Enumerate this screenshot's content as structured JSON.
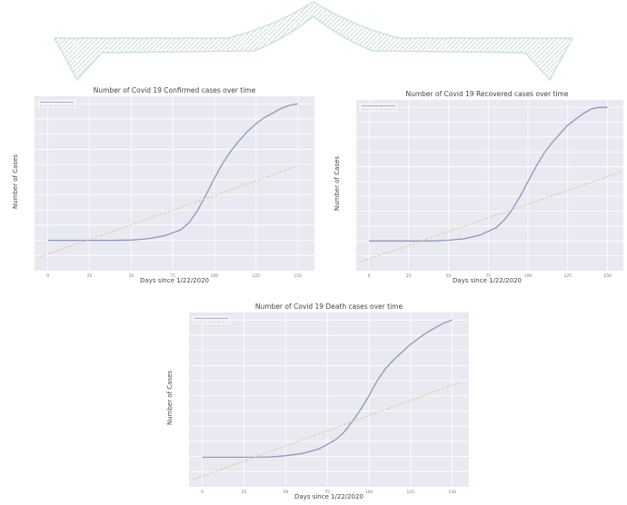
{
  "colors": {
    "plot_bg": "#e9e9f1",
    "grid": "#ffffff",
    "confirmed_line": "#8f96bf",
    "regression_line": "#e7c59a",
    "watermark": "#cfe2d8"
  },
  "chart_data": [
    {
      "type": "line",
      "title": "Number of Covid 19 Confirmed cases over time",
      "xlabel": "Days since 1/22/2020",
      "ylabel": "Number of Cases",
      "legend_position": "top-left",
      "grid": true,
      "xlim": [
        -8,
        160
      ],
      "ylim": [
        -1,
        10.5
      ],
      "x_ticks": [
        0,
        25,
        50,
        75,
        100,
        125,
        150
      ],
      "y_ticks": [
        0,
        1,
        2,
        3,
        4,
        5,
        6,
        7,
        8,
        9,
        10
      ],
      "x_tick_labels": [
        "0",
        "25",
        "50",
        "75",
        "100",
        "125",
        "150"
      ],
      "y_tick_labels": [
        "",
        "",
        "",
        "",
        "",
        "",
        "",
        "",
        "",
        "",
        ""
      ],
      "series": [
        {
          "role": "actual",
          "x": [
            0,
            10,
            20,
            30,
            40,
            50,
            60,
            70,
            80,
            85,
            90,
            95,
            100,
            105,
            110,
            115,
            120,
            125,
            130,
            135,
            140,
            145,
            150
          ],
          "y": [
            1.0,
            1.0,
            1.0,
            1.0,
            1.0,
            1.02,
            1.1,
            1.3,
            1.7,
            2.2,
            3.0,
            4.0,
            5.1,
            6.1,
            6.9,
            7.6,
            8.2,
            8.7,
            9.1,
            9.4,
            9.7,
            9.9,
            10.0
          ]
        },
        {
          "role": "prediction",
          "x": [
            -5,
            150
          ],
          "y": [
            -0.1,
            5.9
          ]
        }
      ]
    },
    {
      "type": "line",
      "title": "Number of Covid 19 Recovered cases over time",
      "xlabel": "Days since 1/22/2020",
      "ylabel": "Number of Cases",
      "legend_position": "top-left",
      "grid": true,
      "xlim": [
        -8,
        160
      ],
      "ylim": [
        -1,
        10.5
      ],
      "x_ticks": [
        0,
        25,
        50,
        75,
        100,
        125,
        150
      ],
      "y_ticks": [
        0,
        1,
        2,
        3,
        4,
        5,
        6,
        7,
        8,
        9,
        10
      ],
      "x_tick_labels": [
        "0",
        "25",
        "50",
        "75",
        "100",
        "125",
        "150"
      ],
      "y_tick_labels": [
        "",
        "",
        "",
        "",
        "",
        "",
        "",
        "",
        "",
        "",
        ""
      ],
      "series": [
        {
          "role": "actual",
          "x": [
            0,
            10,
            20,
            30,
            40,
            50,
            60,
            70,
            80,
            85,
            90,
            95,
            100,
            105,
            110,
            115,
            120,
            125,
            130,
            135,
            140,
            145,
            150
          ],
          "y": [
            1.0,
            1.0,
            1.0,
            1.0,
            1.0,
            1.05,
            1.15,
            1.4,
            1.9,
            2.4,
            3.1,
            4.0,
            5.0,
            6.0,
            6.9,
            7.6,
            8.2,
            8.8,
            9.2,
            9.6,
            9.9,
            10.0,
            10.0
          ]
        },
        {
          "role": "prediction",
          "x": [
            -5,
            160
          ],
          "y": [
            -0.4,
            5.7
          ]
        }
      ]
    },
    {
      "type": "line",
      "title": "Number of Covid 19 Death cases over time",
      "xlabel": "Days since 1/22/2020",
      "ylabel": "Number of Cases",
      "legend_position": "top-left",
      "grid": true,
      "xlim": [
        -8,
        160
      ],
      "ylim": [
        -1,
        10.5
      ],
      "x_ticks": [
        0,
        25,
        50,
        75,
        100,
        125,
        150
      ],
      "y_ticks": [
        0,
        1,
        2,
        3,
        4,
        5,
        6,
        7,
        8,
        9,
        10
      ],
      "x_tick_labels": [
        "0",
        "25",
        "50",
        "75",
        "100",
        "125",
        "150"
      ],
      "y_tick_labels": [
        "",
        "",
        "",
        "",
        "",
        "",
        "",
        "",
        "",
        "",
        ""
      ],
      "series": [
        {
          "role": "actual",
          "x": [
            0,
            10,
            20,
            30,
            40,
            50,
            60,
            70,
            80,
            85,
            90,
            95,
            100,
            105,
            110,
            115,
            120,
            125,
            130,
            135,
            140,
            145,
            150
          ],
          "y": [
            0.95,
            0.95,
            0.95,
            0.95,
            0.97,
            1.05,
            1.2,
            1.5,
            2.1,
            2.6,
            3.3,
            4.1,
            5.0,
            6.0,
            6.8,
            7.4,
            7.9,
            8.4,
            8.8,
            9.2,
            9.5,
            9.8,
            10.0
          ]
        },
        {
          "role": "prediction",
          "x": [
            -5,
            155
          ],
          "y": [
            -0.5,
            5.9
          ]
        }
      ]
    }
  ]
}
